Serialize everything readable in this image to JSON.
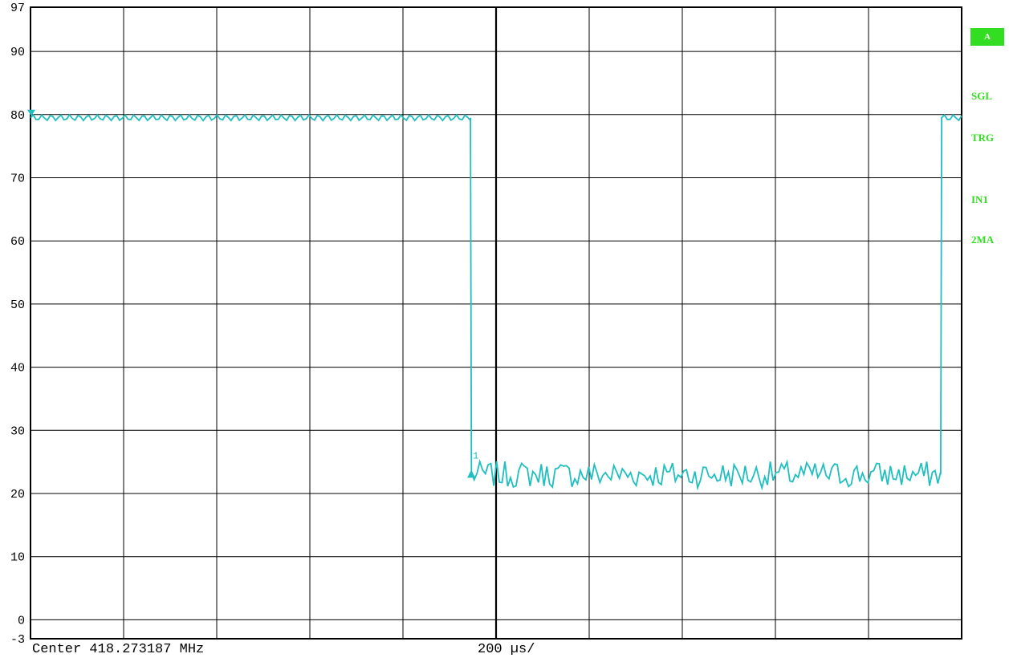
{
  "chart_data": {
    "type": "line",
    "ylim": [
      -3,
      97
    ],
    "y_ticks": [
      97,
      90,
      80,
      70,
      60,
      50,
      40,
      30,
      20,
      10,
      0,
      -3
    ],
    "x_divisions": 10,
    "x_range_us": [
      0,
      2000
    ],
    "grid": true,
    "trace_color": "#1fbfbf",
    "series": [
      {
        "x": [
          0,
          945,
          947,
          1955,
          1957,
          2000
        ],
        "values": [
          79.5,
          79.5,
          23.0,
          23.0,
          79.5,
          79.5
        ]
      }
    ],
    "marker_label": "1",
    "annotations": [
      "Center 418.273187 MHz",
      "200 µs/"
    ]
  },
  "footer": {
    "center": "Center 418.273187 MHz",
    "sweep": "200 µs/"
  },
  "side_panel": {
    "badge": "A",
    "labels": [
      "SGL",
      "TRG",
      "IN1",
      "2MA"
    ],
    "color": "#33dd22"
  }
}
